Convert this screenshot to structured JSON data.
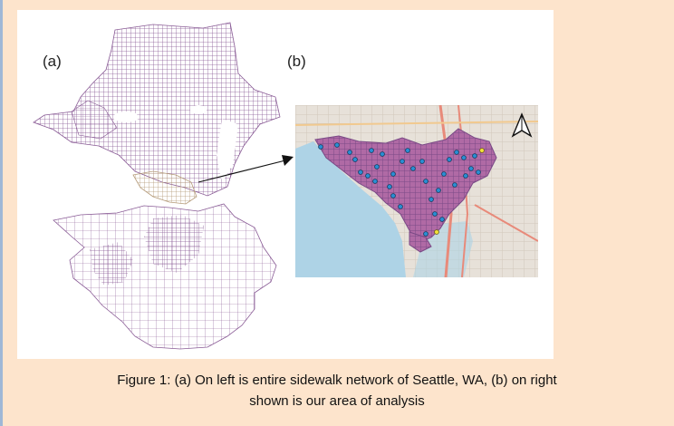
{
  "figure": {
    "label_a": "(a)",
    "label_b": "(b)",
    "caption_line1": "Figure 1: (a) On left is entire sidewalk network of Seattle, WA, (b) on right",
    "caption_line2": "shown is our area of analysis"
  },
  "colors": {
    "page_background": "#fde4cc",
    "panel_background": "#ffffff",
    "network": "#8a5c96",
    "analysis_area": "#c8b190",
    "water": "#aed3e6",
    "inset_land": "#e7e1d9",
    "point_fill": "#2a8ed4",
    "highlight_point_fill": "#f3e23a"
  },
  "icons": {
    "north_arrow": "north-arrow-icon",
    "pointer": "arrow-icon"
  }
}
